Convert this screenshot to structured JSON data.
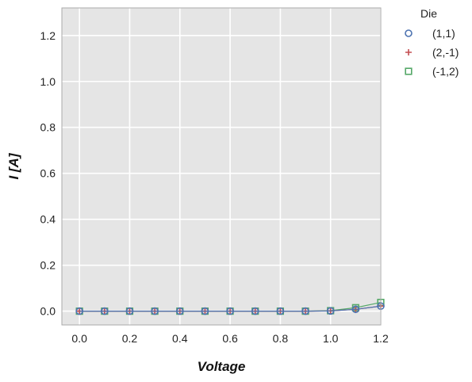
{
  "chart_data": {
    "type": "line",
    "title": "",
    "xlabel": "Voltage",
    "ylabel": "I [A]",
    "xlim": [
      -0.07,
      1.2
    ],
    "ylim": [
      -0.06,
      1.32
    ],
    "xticks": [
      0.0,
      0.2,
      0.4,
      0.6,
      0.8,
      1.0,
      1.2
    ],
    "yticks": [
      0.0,
      0.2,
      0.4,
      0.6,
      0.8,
      1.0,
      1.2
    ],
    "xtick_labels": [
      "0.0",
      "0.2",
      "0.4",
      "0.6",
      "0.8",
      "1.0",
      "1.2"
    ],
    "ytick_labels": [
      "0.0",
      "0.2",
      "0.4",
      "0.6",
      "0.8",
      "1.0",
      "1.2"
    ],
    "grid": true,
    "legend_title": "Die",
    "legend_position": "outside-top-right",
    "x": [
      0.0,
      0.1,
      0.2,
      0.3,
      0.4,
      0.5,
      0.6,
      0.7,
      0.8,
      0.9,
      1.0,
      1.1,
      1.2
    ],
    "series": [
      {
        "name": "(1,1)",
        "marker": "circle",
        "color": "#4c72b0",
        "values": [
          0,
          0,
          0,
          0,
          0,
          0,
          0,
          0,
          0,
          0,
          0.001,
          0.008,
          0.022
        ]
      },
      {
        "name": "(2,-1)",
        "marker": "plus",
        "color": "#c44e52",
        "values": [
          0,
          0,
          0,
          0,
          0,
          0,
          0,
          0,
          0,
          0,
          0.001,
          0.008,
          0.022
        ]
      },
      {
        "name": "(-1,2)",
        "marker": "square",
        "color": "#55a868",
        "values": [
          0,
          0,
          0,
          0,
          0,
          0,
          0,
          0,
          0,
          0,
          0.002,
          0.015,
          0.038
        ]
      }
    ]
  },
  "colors": {
    "plot_background": "#e5e5e5",
    "grid": "#ffffff",
    "frame": "#aaaaaa"
  }
}
